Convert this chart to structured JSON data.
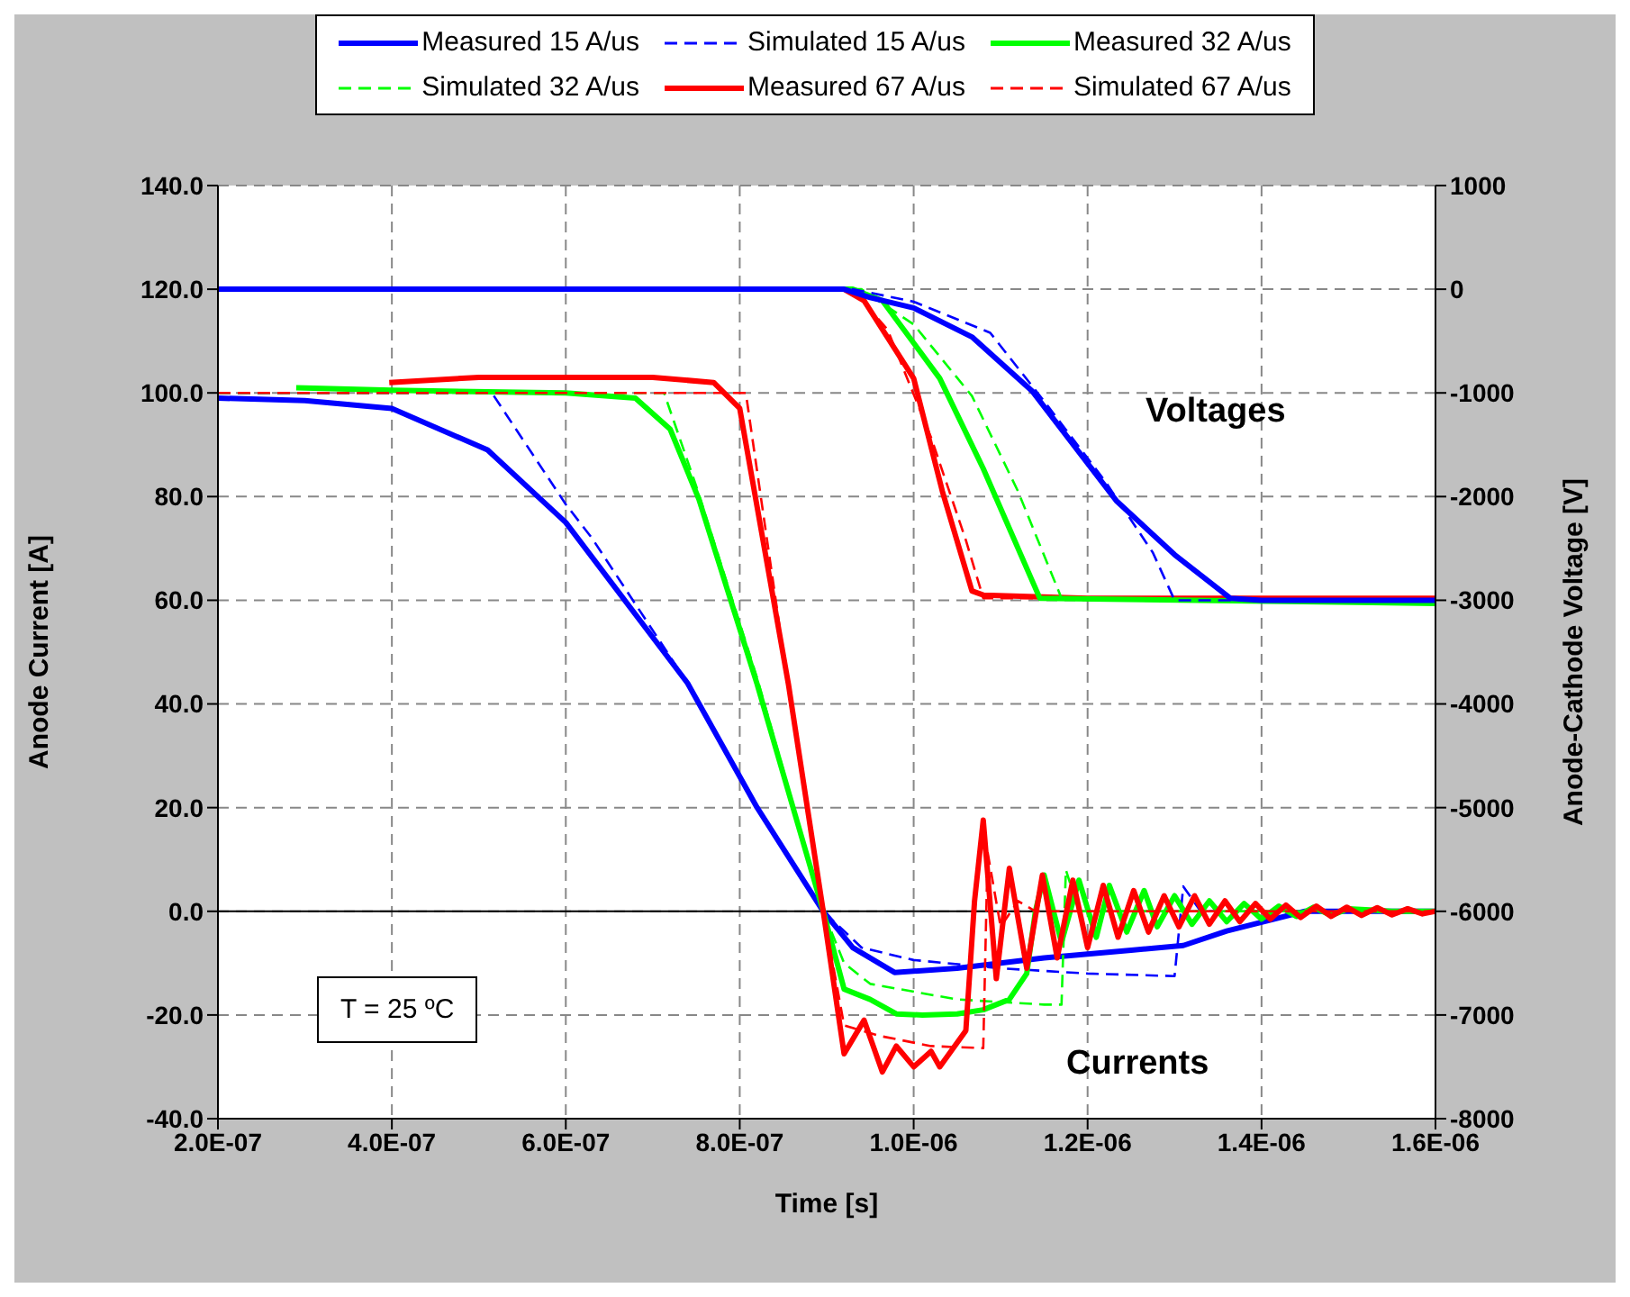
{
  "chart_data": {
    "type": "line",
    "xlabel": "Time [s]",
    "ylabel": "Anode Current [A]",
    "y2label": "Anode-Cathode Voltage [V]",
    "xlim": [
      2e-07,
      1.6e-06
    ],
    "xticks": [
      {
        "value": 2e-07,
        "label": "2.0E-07"
      },
      {
        "value": 4e-07,
        "label": "4.0E-07"
      },
      {
        "value": 6e-07,
        "label": "6.0E-07"
      },
      {
        "value": 8e-07,
        "label": "8.0E-07"
      },
      {
        "value": 1e-06,
        "label": "1.0E-06"
      },
      {
        "value": 1.2e-06,
        "label": "1.2E-06"
      },
      {
        "value": 1.4e-06,
        "label": "1.4E-06"
      },
      {
        "value": 1.6e-06,
        "label": "1.6E-06"
      }
    ],
    "ylim": [
      -40,
      140
    ],
    "yticks": [
      {
        "value": -40,
        "label": "-40.0"
      },
      {
        "value": -20,
        "label": "-20.0"
      },
      {
        "value": 0,
        "label": "0.0"
      },
      {
        "value": 20,
        "label": "20.0"
      },
      {
        "value": 40,
        "label": "40.0"
      },
      {
        "value": 60,
        "label": "60.0"
      },
      {
        "value": 80,
        "label": "80.0"
      },
      {
        "value": 100,
        "label": "100.0"
      },
      {
        "value": 120,
        "label": "120.0"
      },
      {
        "value": 140,
        "label": "140.0"
      }
    ],
    "y2lim": [
      -8000,
      1000
    ],
    "y2ticks": [
      -8000,
      -7000,
      -6000,
      -5000,
      -4000,
      -3000,
      -2000,
      -1000,
      0,
      1000
    ],
    "grid": true,
    "legend": "top",
    "ref_lines": [
      {
        "axis": "y",
        "value": 0,
        "color": "#000000"
      }
    ],
    "annotations": [
      "Voltages",
      "Currents",
      "T = 25 ºC"
    ],
    "series": [
      {
        "name": "Measured 15 A/us",
        "color": "#0000ff",
        "line_style": "solid",
        "x": [
          2e-07,
          3e-07,
          4e-07,
          5.1e-07,
          6e-07,
          7.4e-07,
          8.2e-07,
          8.96e-07,
          9.3e-07,
          9.78e-07,
          1.05e-06,
          1.15e-06,
          1.25e-06,
          1.31e-06,
          1.36e-06,
          1.45e-06,
          1.5e-06,
          1.6e-06
        ],
        "values": [
          99,
          98.5,
          97,
          89,
          75,
          44,
          20,
          0,
          -7,
          -11.8,
          -11,
          -9,
          -7.5,
          -6.6,
          -3.8,
          0,
          0,
          0
        ]
      },
      {
        "name": "Simulated 15 A/us",
        "color": "#0000ff",
        "line_style": "dashed",
        "x": [
          2e-07,
          5.15e-07,
          6e-07,
          6.3e-07,
          7.4e-07,
          8.2e-07,
          8.96e-07,
          9.4e-07,
          1e-06,
          1.1e-06,
          1.2e-06,
          1.3e-06,
          1.31e-06,
          1.33e-06,
          1.36e-06,
          1.6e-06
        ],
        "values": [
          100,
          100,
          78.5,
          72,
          44,
          20,
          0,
          -7,
          -9.4,
          -11,
          -12,
          -12.5,
          4.8,
          0,
          0,
          0
        ]
      },
      {
        "name": "Measured 32 A/us",
        "color": "#00ff00",
        "line_style": "solid",
        "x": [
          2.9e-07,
          4e-07,
          6e-07,
          6.8e-07,
          7.2e-07,
          7.53e-07,
          8.2e-07,
          8.96e-07,
          9.2e-07,
          9.5e-07,
          9.8e-07,
          1.01e-06,
          1.05e-06,
          1.08e-06,
          1.11e-06,
          1.13e-06,
          1.14e-06,
          1.15e-06,
          1.17e-06,
          1.19e-06,
          1.21e-06,
          1.225e-06,
          1.245e-06,
          1.265e-06,
          1.28e-06,
          1.3e-06,
          1.32e-06,
          1.34e-06,
          1.36e-06,
          1.38e-06,
          1.4e-06,
          1.42e-06,
          1.44e-06,
          1.46e-06,
          1.48e-06,
          1.5e-06,
          1.55e-06,
          1.6e-06
        ],
        "values": [
          101,
          100.5,
          100,
          99,
          93,
          79.5,
          43.8,
          0,
          -15,
          -17,
          -19.8,
          -20,
          -19.8,
          -19,
          -17,
          -12,
          0,
          7,
          -6,
          6,
          -5,
          5,
          -4,
          4,
          -3,
          3,
          -2.5,
          2,
          -2,
          1.5,
          -1.5,
          1,
          -1,
          0.8,
          -0.8,
          0.5,
          0,
          0
        ]
      },
      {
        "name": "Simulated 32 A/us",
        "color": "#00ff00",
        "line_style": "dashed",
        "x": [
          2e-07,
          7.13e-07,
          7.5e-07,
          8.2e-07,
          8.96e-07,
          9.2e-07,
          9.5e-07,
          1.05e-06,
          1.15e-06,
          1.17e-06,
          1.175e-06,
          1.19e-06,
          1.6e-06
        ],
        "values": [
          100,
          100,
          82,
          45,
          0,
          -10,
          -14,
          -17,
          -18,
          -18,
          8,
          0,
          0
        ]
      },
      {
        "name": "Measured 67 A/us",
        "color": "#ff0000",
        "line_style": "solid",
        "x": [
          3.97e-07,
          5e-07,
          6e-07,
          7e-07,
          7.7e-07,
          8e-07,
          8.56e-07,
          8.96e-07,
          9.2e-07,
          9.43e-07,
          9.64e-07,
          9.8e-07,
          1e-06,
          1.02e-06,
          1.03e-06,
          1.06e-06,
          1.07e-06,
          1.08e-06,
          1.095e-06,
          1.11e-06,
          1.13e-06,
          1.148e-06,
          1.165e-06,
          1.183e-06,
          1.2e-06,
          1.218e-06,
          1.235e-06,
          1.253e-06,
          1.27e-06,
          1.288e-06,
          1.305e-06,
          1.323e-06,
          1.34e-06,
          1.358e-06,
          1.375e-06,
          1.393e-06,
          1.41e-06,
          1.428e-06,
          1.445e-06,
          1.463e-06,
          1.48e-06,
          1.498e-06,
          1.515e-06,
          1.533e-06,
          1.55e-06,
          1.568e-06,
          1.585e-06,
          1.6e-06
        ],
        "values": [
          102,
          103,
          103,
          103,
          102,
          97,
          43.8,
          0,
          -27.5,
          -21,
          -31,
          -26,
          -30,
          -27,
          -30,
          -23,
          2,
          17.6,
          -13,
          8.3,
          -11,
          7,
          -9,
          6,
          -7,
          5,
          -5,
          4,
          -4,
          3,
          -3,
          3,
          -2.5,
          2,
          -2,
          1.5,
          -1.5,
          1.2,
          -1.2,
          1,
          -1,
          0.8,
          -0.8,
          0.7,
          -0.7,
          0.5,
          -0.5,
          0
        ]
      },
      {
        "name": "Simulated 67 A/us",
        "color": "#ff0000",
        "line_style": "dashed",
        "x": [
          2e-07,
          8.07e-07,
          8.5e-07,
          8.96e-07,
          9.2e-07,
          9.6e-07,
          1.02e-06,
          1.08e-06,
          1.085e-06,
          1.1e-06,
          1.12e-06,
          1.14e-06,
          1.6e-06
        ],
        "values": [
          100,
          100,
          50,
          0,
          -22,
          -24,
          -26,
          -26.4,
          11.4,
          -3,
          2,
          0,
          0
        ]
      },
      {
        "color": "#0000ff",
        "line_style": "solid",
        "axis": "y2",
        "x": [
          2e-07,
          9.2e-07,
          9.5e-07,
          1e-06,
          1.067e-06,
          1.136e-06,
          1.233e-06,
          1.3e-06,
          1.364e-06,
          1.4e-06,
          1.6e-06
        ],
        "values": [
          0,
          0,
          -80,
          -180,
          -460,
          -980,
          -2040,
          -2560,
          -2980,
          -3000,
          -3000
        ]
      },
      {
        "color": "#0000ff",
        "line_style": "dashed",
        "axis": "y2",
        "x": [
          2e-07,
          9.3e-07,
          1e-06,
          1.088e-06,
          1.15e-06,
          1.22e-06,
          1.275e-06,
          1.3e-06,
          1.6e-06
        ],
        "values": [
          0,
          0,
          -120,
          -420,
          -1080,
          -1850,
          -2540,
          -3000,
          -3000
        ]
      },
      {
        "color": "#00ff00",
        "line_style": "solid",
        "axis": "y2",
        "x": [
          2e-07,
          9.3e-07,
          9.64e-07,
          1.03e-06,
          1.08e-06,
          1.145e-06,
          1.6e-06
        ],
        "values": [
          0,
          0,
          -110,
          -860,
          -1730,
          -2980,
          -3030
        ]
      },
      {
        "color": "#00ff00",
        "line_style": "dashed",
        "axis": "y2",
        "x": [
          2e-07,
          9.4e-07,
          1e-06,
          1.067e-06,
          1.12e-06,
          1.17e-06,
          1.6e-06
        ],
        "values": [
          0,
          0,
          -340,
          -1030,
          -1950,
          -2980,
          -3030
        ]
      },
      {
        "color": "#ff0000",
        "line_style": "solid",
        "axis": "y2",
        "x": [
          2e-07,
          9.2e-07,
          9.43e-07,
          1e-06,
          1.033e-06,
          1.067e-06,
          1.08e-06,
          1.2e-06,
          1.6e-06
        ],
        "values": [
          0,
          0,
          -110,
          -860,
          -1950,
          -2910,
          -2950,
          -2980,
          -2980
        ]
      },
      {
        "color": "#ff0000",
        "line_style": "dashed",
        "axis": "y2",
        "x": [
          2e-07,
          9.3e-07,
          9.7e-07,
          1.02e-06,
          1.06e-06,
          1.08e-06,
          1.6e-06
        ],
        "values": [
          0,
          0,
          -390,
          -1430,
          -2420,
          -2980,
          -2980
        ]
      }
    ]
  }
}
